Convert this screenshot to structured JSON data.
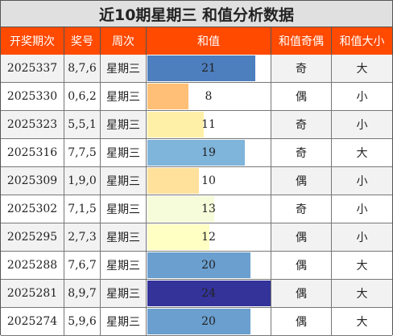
{
  "title": "近10期星期三 和值分析数据",
  "columns": [
    "开奖期次",
    "奖号",
    "周次",
    "和值",
    "和值奇偶",
    "和值大小"
  ],
  "sum_scale_max": 24,
  "rows": [
    {
      "issue": "2025337",
      "numbers": "8,7,6",
      "weekday": "星期三",
      "sum": 21,
      "parity": "奇",
      "size": "大",
      "bar_color": "#4d7ebd",
      "bg": "#f2f2f2"
    },
    {
      "issue": "2025330",
      "numbers": "0,6,2",
      "weekday": "星期三",
      "sum": 8,
      "parity": "偶",
      "size": "小",
      "bar_color": "#ffbf76",
      "bg": "#ffffff"
    },
    {
      "issue": "2025323",
      "numbers": "5,5,1",
      "weekday": "星期三",
      "sum": 11,
      "parity": "奇",
      "size": "小",
      "bar_color": "#fff0a8",
      "bg": "#f2f2f2"
    },
    {
      "issue": "2025316",
      "numbers": "7,7,5",
      "weekday": "星期三",
      "sum": 19,
      "parity": "奇",
      "size": "大",
      "bar_color": "#7fb4db",
      "bg": "#ffffff"
    },
    {
      "issue": "2025309",
      "numbers": "1,9,0",
      "weekday": "星期三",
      "sum": 10,
      "parity": "偶",
      "size": "小",
      "bar_color": "#ffe19c",
      "bg": "#f2f2f2"
    },
    {
      "issue": "2025302",
      "numbers": "7,1,5",
      "weekday": "星期三",
      "sum": 13,
      "parity": "奇",
      "size": "小",
      "bar_color": "#f6fbda",
      "bg": "#ffffff"
    },
    {
      "issue": "2025295",
      "numbers": "2,7,3",
      "weekday": "星期三",
      "sum": 12,
      "parity": "偶",
      "size": "小",
      "bar_color": "#ffffc4",
      "bg": "#f2f2f2"
    },
    {
      "issue": "2025288",
      "numbers": "7,6,7",
      "weekday": "星期三",
      "sum": 20,
      "parity": "偶",
      "size": "大",
      "bar_color": "#6a9fcf",
      "bg": "#ffffff"
    },
    {
      "issue": "2025281",
      "numbers": "8,9,7",
      "weekday": "星期三",
      "sum": 24,
      "parity": "偶",
      "size": "大",
      "bar_color": "#33339a",
      "bg": "#f2f2f2"
    },
    {
      "issue": "2025274",
      "numbers": "5,9,6",
      "weekday": "星期三",
      "sum": 20,
      "parity": "偶",
      "size": "大",
      "bar_color": "#6a9fcf",
      "bg": "#ffffff"
    }
  ]
}
